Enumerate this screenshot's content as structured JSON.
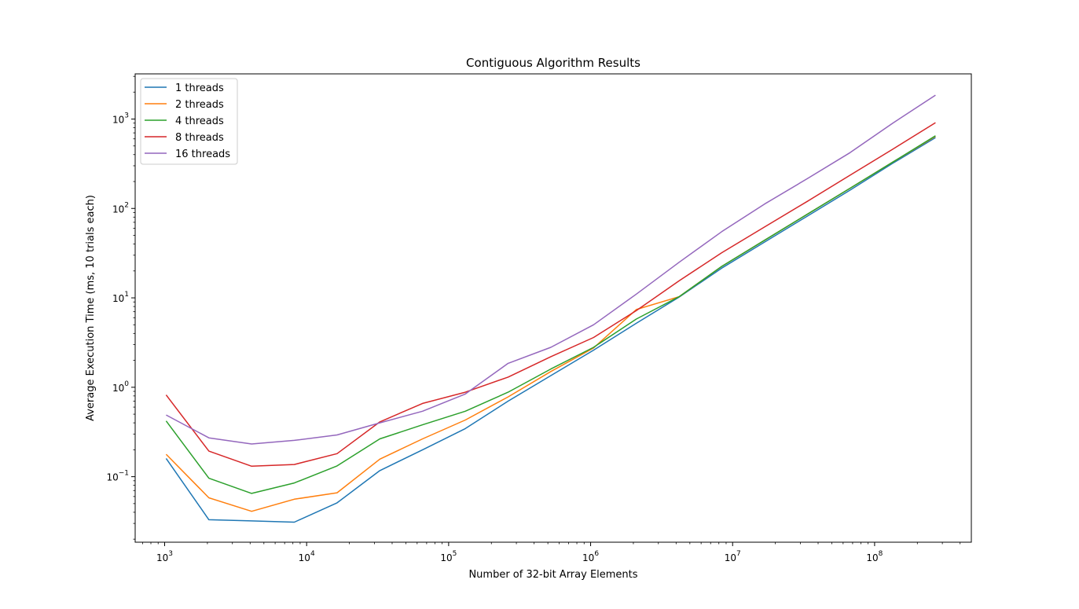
{
  "chart_data": {
    "type": "line",
    "title": "Contiguous Algorithm Results",
    "xlabel": "Number of 32-bit Array Elements",
    "ylabel": "Average Execution Time (ms, 10 trials each)",
    "xscale": "log",
    "yscale": "log",
    "xlim": [
      620,
      480000000
    ],
    "ylim": [
      0.0185,
      3200
    ],
    "grid": false,
    "legend_position": "upper-left",
    "x_ticks": [
      {
        "value": 1000,
        "mantissa": "10",
        "exponent": "3"
      },
      {
        "value": 10000,
        "mantissa": "10",
        "exponent": "4"
      },
      {
        "value": 100000,
        "mantissa": "10",
        "exponent": "5"
      },
      {
        "value": 1000000,
        "mantissa": "10",
        "exponent": "6"
      },
      {
        "value": 10000000,
        "mantissa": "10",
        "exponent": "7"
      },
      {
        "value": 100000000,
        "mantissa": "10",
        "exponent": "8"
      }
    ],
    "y_ticks": [
      {
        "value": 0.1,
        "mantissa": "10",
        "exponent": "−1"
      },
      {
        "value": 1,
        "mantissa": "10",
        "exponent": "0"
      },
      {
        "value": 10,
        "mantissa": "10",
        "exponent": "1"
      },
      {
        "value": 100,
        "mantissa": "10",
        "exponent": "2"
      },
      {
        "value": 1000,
        "mantissa": "10",
        "exponent": "3"
      }
    ],
    "x": [
      1024,
      2048,
      4096,
      8192,
      16384,
      32768,
      65536,
      131072,
      262144,
      524288,
      1048576,
      2097152,
      4194304,
      8388608,
      16777216,
      33554432,
      67108864,
      134217728,
      268435456
    ],
    "series": [
      {
        "name": "1 threads",
        "color": "#1f77b4",
        "values": [
          0.16,
          0.033,
          0.032,
          0.031,
          0.051,
          0.117,
          0.2,
          0.345,
          0.7,
          1.35,
          2.6,
          5.2,
          10.2,
          21.5,
          42,
          82,
          160,
          320,
          620
        ]
      },
      {
        "name": "2 threads",
        "color": "#ff7f0e",
        "values": [
          0.178,
          0.058,
          0.041,
          0.056,
          0.066,
          0.157,
          0.265,
          0.43,
          0.78,
          1.5,
          2.75,
          7.4,
          10.3,
          22.5,
          44,
          86,
          168,
          330,
          640
        ]
      },
      {
        "name": "4 threads",
        "color": "#2ca02c",
        "values": [
          0.42,
          0.096,
          0.065,
          0.085,
          0.132,
          0.265,
          0.38,
          0.54,
          0.88,
          1.6,
          2.8,
          5.8,
          10.3,
          22.5,
          44,
          86,
          168,
          330,
          650
        ]
      },
      {
        "name": "8 threads",
        "color": "#d62728",
        "values": [
          0.82,
          0.193,
          0.131,
          0.137,
          0.181,
          0.41,
          0.66,
          0.88,
          1.3,
          2.2,
          3.6,
          7.2,
          15.5,
          32,
          62,
          120,
          235,
          460,
          910
        ]
      },
      {
        "name": "16 threads",
        "color": "#9467bd",
        "values": [
          0.49,
          0.272,
          0.232,
          0.255,
          0.293,
          0.4,
          0.54,
          0.84,
          1.85,
          2.8,
          5.0,
          11,
          25,
          55,
          112,
          215,
          420,
          900,
          1850
        ]
      }
    ]
  }
}
